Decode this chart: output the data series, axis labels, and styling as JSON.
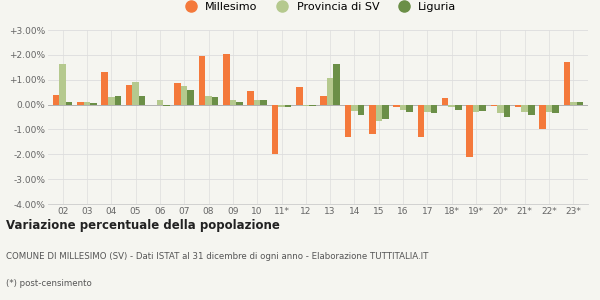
{
  "categories": [
    "02",
    "03",
    "04",
    "05",
    "06",
    "07",
    "08",
    "09",
    "10",
    "11*",
    "12",
    "13",
    "14",
    "15",
    "16",
    "17",
    "18*",
    "19*",
    "20*",
    "21*",
    "22*",
    "23*"
  ],
  "millesimo": [
    0.4,
    0.1,
    1.3,
    0.8,
    0.0,
    0.85,
    1.95,
    2.05,
    0.55,
    -2.0,
    0.7,
    0.35,
    -1.3,
    -1.2,
    -0.1,
    -1.3,
    0.25,
    -2.1,
    -0.05,
    -0.1,
    -1.0,
    1.7
  ],
  "provincia_sv": [
    1.65,
    0.1,
    0.3,
    0.9,
    0.2,
    0.75,
    0.35,
    0.2,
    0.2,
    -0.1,
    -0.05,
    1.05,
    -0.25,
    -0.65,
    -0.2,
    -0.3,
    -0.1,
    -0.3,
    -0.35,
    -0.3,
    -0.3,
    0.1
  ],
  "liguria": [
    0.1,
    0.05,
    0.35,
    0.35,
    -0.05,
    0.6,
    0.3,
    0.1,
    0.2,
    -0.1,
    -0.05,
    1.65,
    -0.4,
    -0.6,
    -0.3,
    -0.35,
    -0.2,
    -0.25,
    -0.5,
    -0.4,
    -0.35,
    0.1
  ],
  "color_millesimo": "#f4793b",
  "color_provincia": "#b5c98e",
  "color_liguria": "#6b8f47",
  "ylim_min": -4.0,
  "ylim_max": 3.0,
  "yticks": [
    -4.0,
    -3.0,
    -2.0,
    -1.0,
    0.0,
    1.0,
    2.0,
    3.0
  ],
  "ytick_labels": [
    "-4.00%",
    "-3.00%",
    "-2.00%",
    "-1.00%",
    "0.00%",
    "+1.00%",
    "+2.00%",
    "+3.00%"
  ],
  "title_bold": "Variazione percentuale della popolazione",
  "subtitle1": "COMUNE DI MILLESIMO (SV) - Dati ISTAT al 31 dicembre di ogni anno - Elaborazione TUTTITALIA.IT",
  "subtitle2": "(*) post-censimento",
  "legend_labels": [
    "Millesimo",
    "Provincia di SV",
    "Liguria"
  ],
  "bar_width": 0.27,
  "bg_color": "#f5f5f0",
  "grid_color": "#dddddd"
}
